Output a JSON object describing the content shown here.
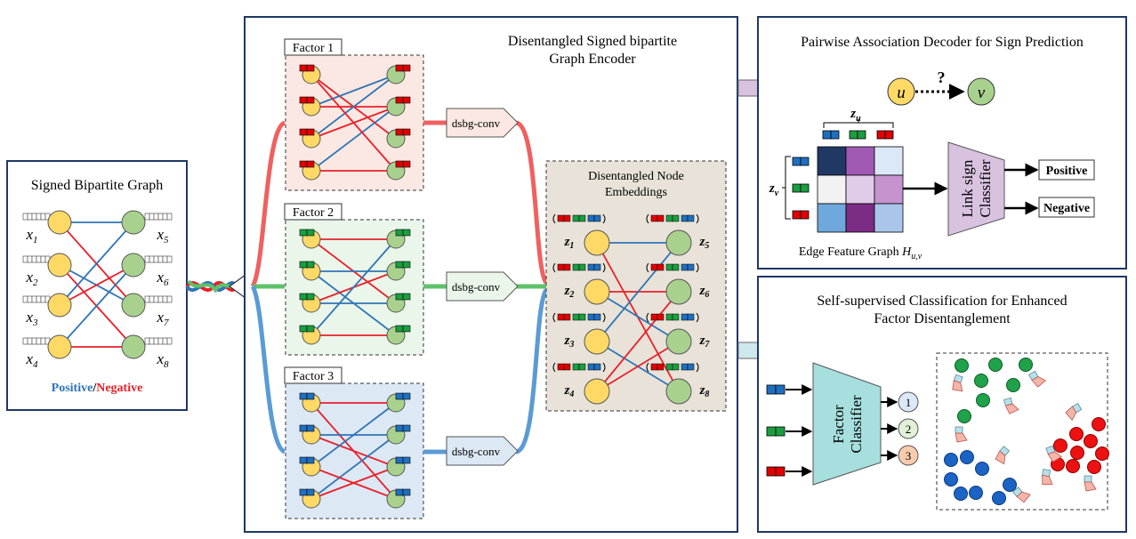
{
  "input_panel": {
    "title": "Signed Bipartite Graph",
    "left_nodes": [
      "x",
      "x",
      "x",
      "x"
    ],
    "left_subscripts": [
      "1",
      "2",
      "3",
      "4"
    ],
    "right_nodes": [
      "x",
      "x",
      "x",
      "x"
    ],
    "right_subscripts": [
      "5",
      "6",
      "7",
      "8"
    ],
    "legend_positive": "Positive",
    "legend_slash": "/",
    "legend_negative": "Negative"
  },
  "encoder": {
    "title_line1": "Disentangled  Signed bipartite",
    "title_line2": "Graph Encoder",
    "factors": [
      "Factor 1",
      "Factor 2",
      "Factor 3"
    ],
    "conv_label": "dsbg-conv",
    "embeddings_title_line1": "Disentangled  Node",
    "embeddings_title_line2": "Embeddings",
    "emb_left_subscripts": [
      "1",
      "2",
      "3",
      "4"
    ],
    "emb_right_subscripts": [
      "5",
      "6",
      "7",
      "8"
    ],
    "emb_letter": "z"
  },
  "decoder": {
    "title": "Pairwise Association Decoder for Sign Prediction",
    "node_u": "u",
    "node_v": "v",
    "question": "?",
    "zu_label": "z",
    "zu_sub": "u",
    "zv_label": "z",
    "zv_sub": "v",
    "edge_feature_label": "Edge Feature  Graph",
    "edge_feature_symbol": "H",
    "edge_feature_sub": "u,v",
    "classifier_line1": "Link sign",
    "classifier_line2": "Classifier",
    "output_positive": "Positive",
    "output_negative": "Negative"
  },
  "selfsup": {
    "title_line1": "Self-supervised  Classification for Enhanced",
    "title_line2": "Factor Disentanglement",
    "classifier_line1": "Factor",
    "classifier_line2": "Classifier",
    "outputs": [
      "1",
      "2",
      "3"
    ]
  },
  "colors": {
    "positive": "#2e75b6",
    "negative": "#e8202a",
    "factor_red": "#e00000",
    "factor_green": "#1a9e3f",
    "factor_blue": "#1f6fc0",
    "left_node": "#ffd966",
    "right_node": "#a9d18e",
    "factor1_bg": "#fce8e2",
    "factor2_bg": "#eaf6ea",
    "factor3_bg": "#dde8f5",
    "embeddings_bg": "#e8e2d8",
    "classifier_bg": "#a7dede",
    "link_classifier_bg": "#d9c2e0"
  }
}
